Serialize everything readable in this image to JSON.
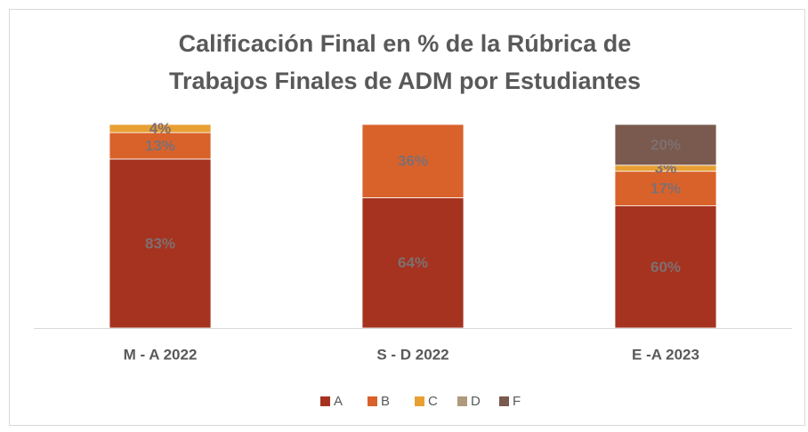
{
  "chart_data": {
    "type": "bar",
    "stacked": true,
    "title": "Calificación Final en % de la Rúbrica de Trabajos Finales de ADM por Estudiantes",
    "categories": [
      "M - A 2022",
      "S - D 2022",
      "E -A 2023"
    ],
    "series": [
      {
        "name": "A",
        "color": "#a5331f",
        "values": [
          83,
          64,
          60
        ],
        "value_labels": [
          "83%",
          "64%",
          "60%"
        ]
      },
      {
        "name": "B",
        "color": "#d9622b",
        "values": [
          13,
          36,
          17
        ],
        "value_labels": [
          "13%",
          "36%",
          "17%"
        ]
      },
      {
        "name": "C",
        "color": "#e8a033",
        "values": [
          4,
          null,
          3
        ],
        "value_labels": [
          "4%",
          null,
          "3%"
        ]
      },
      {
        "name": "D",
        "color": "#b09a7e",
        "values": [
          null,
          null,
          null
        ],
        "value_labels": [
          null,
          null,
          null
        ]
      },
      {
        "name": "F",
        "color": "#7a5a4e",
        "values": [
          null,
          null,
          20
        ],
        "value_labels": [
          null,
          null,
          "20%"
        ]
      }
    ],
    "ylim": [
      0,
      100
    ],
    "legend": "bottom"
  }
}
